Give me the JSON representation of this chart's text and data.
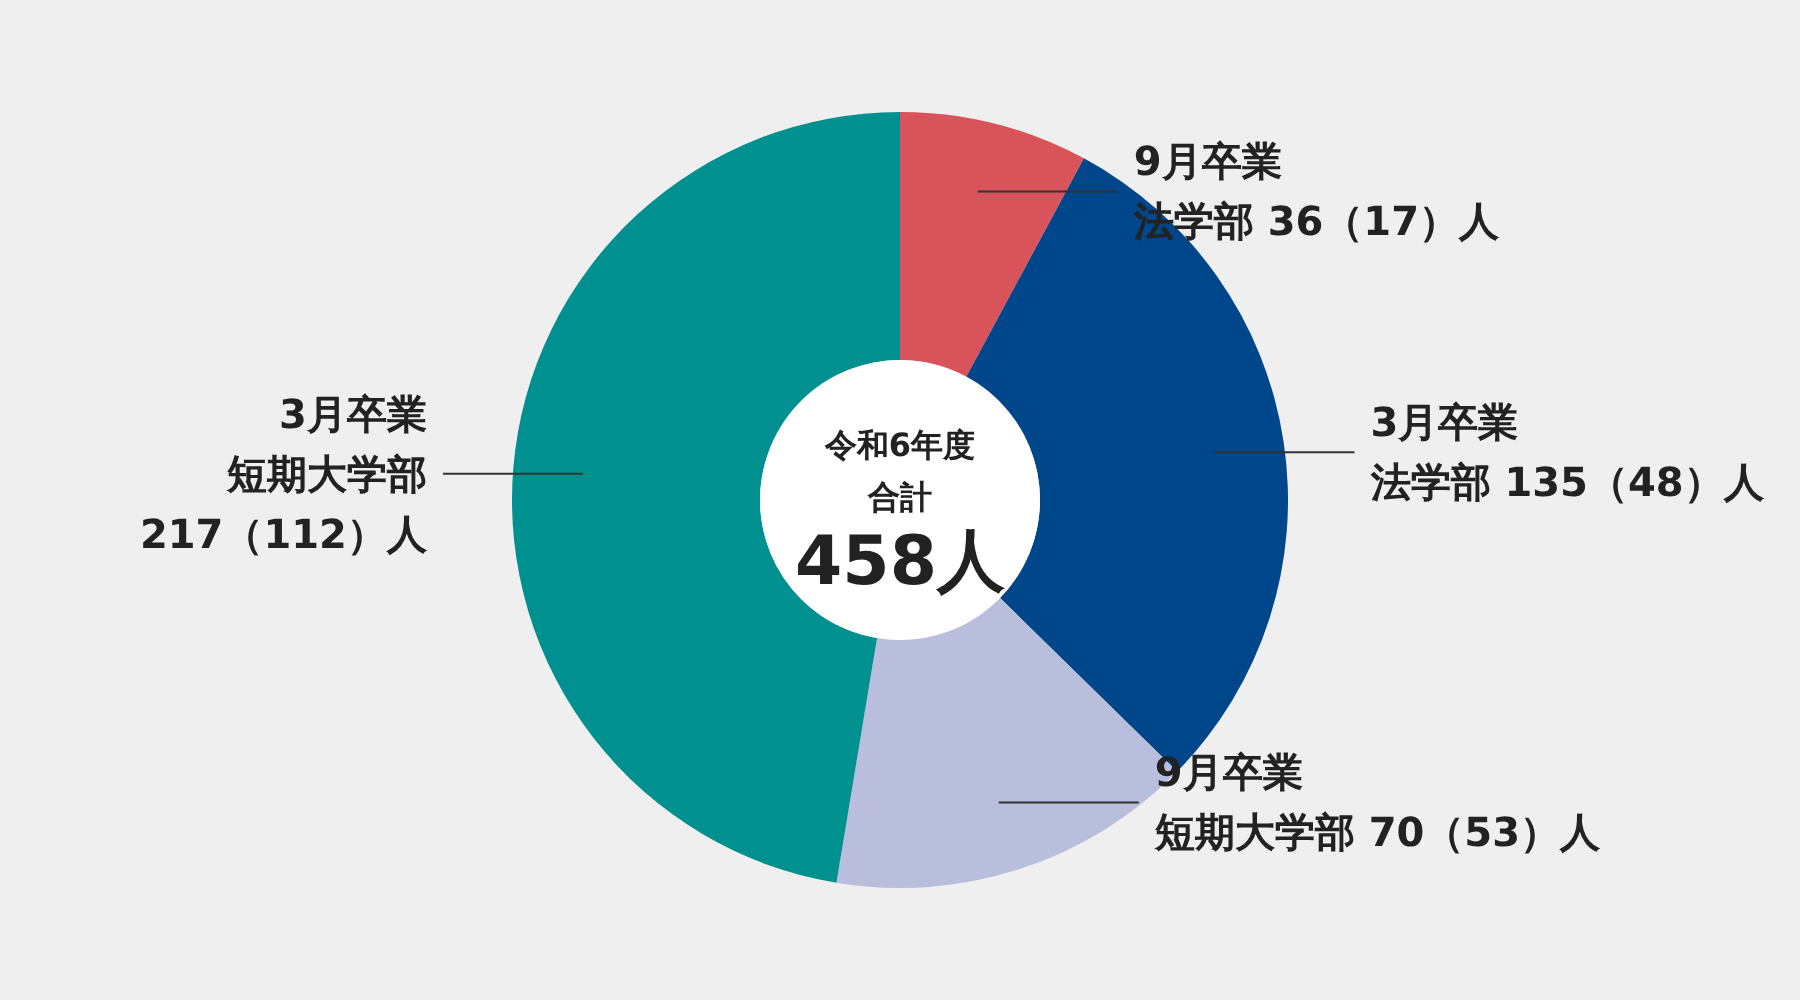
{
  "chart_data": {
    "type": "donut",
    "title": "令和6年度",
    "subtitle": "合計",
    "annotations": [
      "458人"
    ],
    "categories": [
      "9月卒業法学部",
      "3月卒業法学部",
      "9月卒業短期大学部",
      "3月卒業短期大学部"
    ],
    "values": [
      36,
      135,
      70,
      217
    ],
    "value_labels": [
      "36（17）人",
      "135（48）人",
      "70（53）人",
      "217（112）人"
    ],
    "colors": [
      "#d9535a",
      "#00468b",
      "#b9bedd",
      "#009090"
    ]
  }
}
